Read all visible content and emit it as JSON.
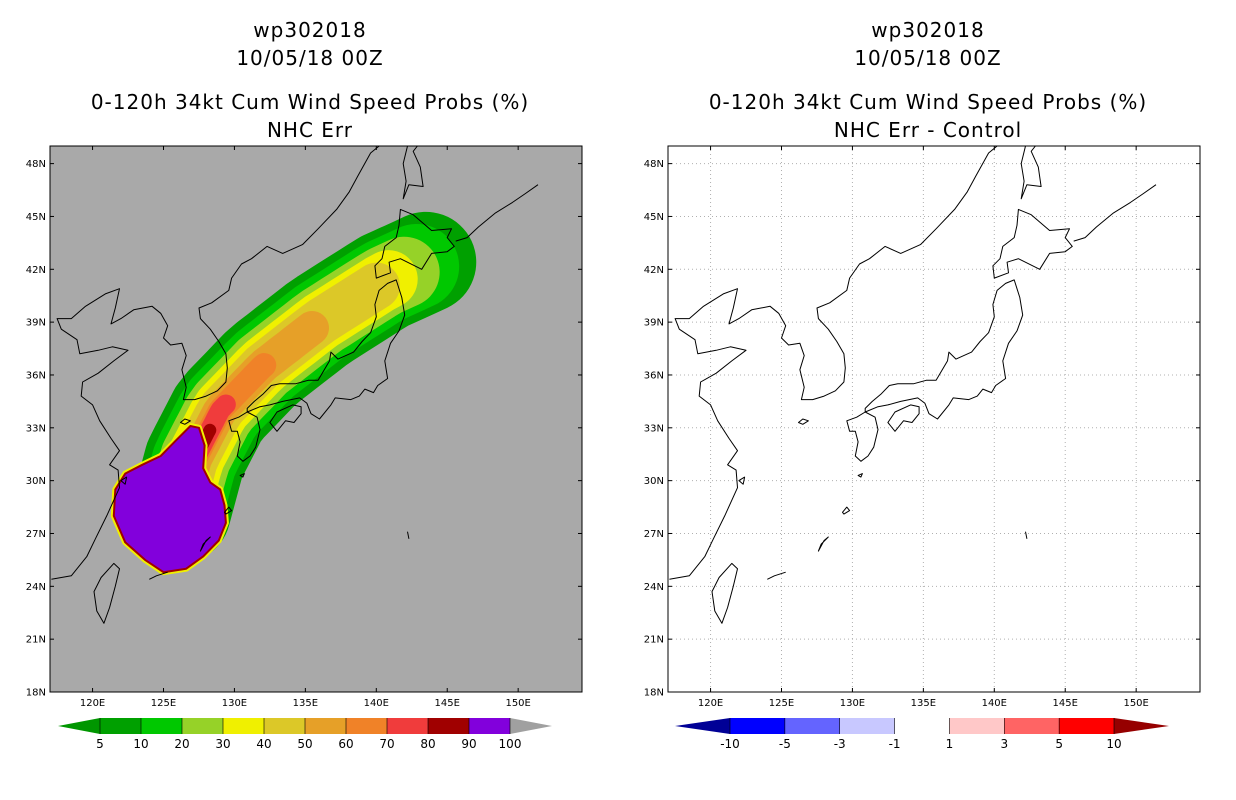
{
  "left_panel": {
    "title_line1": "wp302018",
    "title_line2": "10/05/18 00Z",
    "title_line3": "0-120h 34kt Cum Wind Speed Probs (%)",
    "title_line4": "NHC Err",
    "background_color": "#a9a9a9"
  },
  "right_panel": {
    "title_line1": "wp302018",
    "title_line2": "10/05/18 00Z",
    "title_line3": "0-120h 34kt Cum Wind Speed Probs (%)",
    "title_line4": "NHC Err - Control",
    "background_color": "#ffffff"
  },
  "map": {
    "lat_labels": [
      "48N",
      "45N",
      "42N",
      "39N",
      "36N",
      "33N",
      "30N",
      "27N",
      "24N",
      "21N",
      "18N"
    ],
    "lat_values": [
      48,
      45,
      42,
      39,
      36,
      33,
      30,
      27,
      24,
      21,
      18
    ],
    "lon_labels": [
      "120E",
      "125E",
      "130E",
      "135E",
      "140E",
      "145E",
      "150E"
    ],
    "lon_values": [
      120,
      125,
      130,
      135,
      140,
      145,
      150
    ],
    "lat_range": [
      18,
      49
    ],
    "lon_range": [
      117,
      154.5
    ]
  },
  "left_colorbar": {
    "labels": [
      "5",
      "10",
      "20",
      "30",
      "40",
      "50",
      "60",
      "70",
      "80",
      "90",
      "100"
    ],
    "colors": [
      "#00a000",
      "#00c800",
      "#96d228",
      "#f0f000",
      "#dcc828",
      "#e6a028",
      "#f08228",
      "#f03c3c",
      "#a00000",
      "#8200dc"
    ],
    "under_color": "#009600",
    "over_color": "#a0a0a0"
  },
  "right_colorbar": {
    "labels": [
      "-10",
      "-5",
      "-3",
      "-1",
      "1",
      "3",
      "5",
      "10"
    ],
    "colors": [
      "#0000ff",
      "#6464ff",
      "#c8c8ff",
      "#ffffff",
      "#ffc8c8",
      "#ff6464",
      "#ff0000"
    ],
    "under_color": "#000096",
    "over_color": "#960000"
  },
  "probability_field": {
    "description": "34kt wind speed probability swath",
    "track": [
      [
        126.2,
        28.2
      ],
      [
        127.2,
        31.2
      ],
      [
        129.0,
        34.0
      ],
      [
        132.0,
        36.5
      ],
      [
        136.0,
        39.0
      ],
      [
        140.5,
        41.3
      ],
      [
        143.5,
        42.4
      ]
    ],
    "contour_levels": [
      5,
      10,
      20,
      30,
      40,
      50,
      60,
      70,
      80,
      90,
      100
    ]
  }
}
